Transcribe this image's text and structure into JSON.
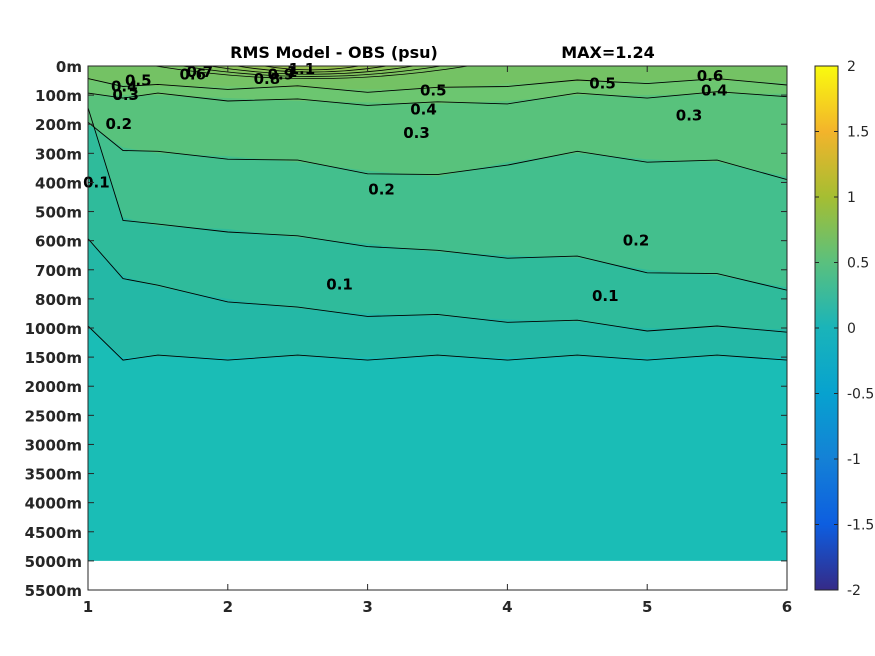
{
  "chart_data": {
    "type": "heatmap",
    "title": "RMS Model - OBS (psu)",
    "max_label": "MAX=1.24",
    "x_ticks": [
      "1",
      "2",
      "3",
      "4",
      "5",
      "6"
    ],
    "xlim": [
      1,
      6
    ],
    "y_ticks": [
      "0m",
      "100m",
      "200m",
      "300m",
      "400m",
      "500m",
      "600m",
      "700m",
      "800m",
      "1000m",
      "1500m",
      "2000m",
      "2500m",
      "3000m",
      "3500m",
      "4000m",
      "4500m",
      "5000m",
      "5500m"
    ],
    "colorbar": {
      "limits": [
        -2,
        2
      ],
      "ticks": [
        "2",
        "1.5",
        "1",
        "0.5",
        "0",
        "-0.5",
        "-1",
        "-1.5",
        "-2"
      ],
      "colormap": "parula"
    },
    "contour_levels": [
      0.1,
      0.2,
      0.3,
      0.4,
      0.5,
      0.6,
      0.7,
      0.8,
      0.9,
      1,
      1.1
    ],
    "contour_labels": [
      {
        "text": "0.1",
        "x": 1.06,
        "y": "400m"
      },
      {
        "text": "0.1",
        "x": 2.8,
        "y": "750m"
      },
      {
        "text": "0.1",
        "x": 4.7,
        "y": "790m"
      },
      {
        "text": "0.2",
        "x": 1.22,
        "y": "200m"
      },
      {
        "text": "0.2",
        "x": 3.1,
        "y": "425m"
      },
      {
        "text": "0.2",
        "x": 4.92,
        "y": "600m"
      },
      {
        "text": "0.3",
        "x": 1.27,
        "y": "100m"
      },
      {
        "text": "0.3",
        "x": 3.35,
        "y": "230m"
      },
      {
        "text": "0.3",
        "x": 5.3,
        "y": "170m"
      },
      {
        "text": "0.4",
        "x": 1.26,
        "y": "70m"
      },
      {
        "text": "0.4",
        "x": 3.4,
        "y": "150m"
      },
      {
        "text": "0.4",
        "x": 5.48,
        "y": "85m"
      },
      {
        "text": "0.5",
        "x": 1.36,
        "y": "50m"
      },
      {
        "text": "0.5",
        "x": 3.47,
        "y": "85m"
      },
      {
        "text": "0.5",
        "x": 4.68,
        "y": "60m"
      },
      {
        "text": "0.6",
        "x": 1.75,
        "y": "30m"
      },
      {
        "text": "0.6",
        "x": 5.45,
        "y": "35m"
      },
      {
        "text": "0.7",
        "x": 1.8,
        "y": "20m"
      },
      {
        "text": "0.8",
        "x": 2.28,
        "y": "45m"
      },
      {
        "text": "0.9",
        "x": 2.38,
        "y": "30m"
      },
      {
        "text": "1",
        "x": 2.46,
        "y": "20m"
      },
      {
        "text": "1.1",
        "x": 2.53,
        "y": "10m"
      }
    ],
    "field_bands_x": [
      1,
      1.25,
      1.5,
      2,
      2.5,
      3,
      3.5,
      4,
      4.5,
      5,
      5.5,
      6
    ],
    "field_bands": [
      {
        "value": 0.65,
        "color": "#74c264",
        "depth": [
          "50m",
          "60m",
          "70m",
          "70m",
          "75m",
          "80m",
          "80m",
          "60m",
          "55m",
          "50m",
          "50m",
          "55m"
        ]
      },
      {
        "value": 0.45,
        "color": "#6cc670",
        "depth": [
          "100m",
          "100m",
          "100m",
          "110m",
          "120m",
          "125m",
          "130m",
          "120m",
          "100m",
          "100m",
          "95m",
          "95m"
        ]
      },
      {
        "value": 0.35,
        "color": "#58c27c",
        "depth": [
          "200m",
          "280m",
          "300m",
          "310m",
          "330m",
          "360m",
          "380m",
          "330m",
          "300m",
          "320m",
          "330m",
          "380m"
        ]
      },
      {
        "value": 0.25,
        "color": "#43bf8d",
        "depth": [
          "150m",
          "520m",
          "550m",
          "560m",
          "590m",
          "610m",
          "640m",
          "650m",
          "660m",
          "700m",
          "720m",
          "760m"
        ]
      },
      {
        "value": 0.15,
        "color": "#2fbb9b",
        "depth": [
          "600m",
          "720m",
          "760m",
          "800m",
          "870m",
          "900m",
          "920m",
          "940m",
          "960m",
          "1000m",
          "1000m",
          "1020m"
        ]
      },
      {
        "value": 0.05,
        "color": "#24b8a6",
        "depth": [
          "1000m",
          "1500m",
          "1500m",
          "1500m",
          "1500m",
          "1500m",
          "1500m",
          "1500m",
          "1500m",
          "1500m",
          "1500m",
          "1500m"
        ]
      }
    ],
    "background_value": 0.02,
    "background_color": "#1abdb6",
    "surface_max": {
      "value": 1.24,
      "x": 2.6,
      "color": "#e6b836"
    },
    "no_data_below": "5000m"
  }
}
